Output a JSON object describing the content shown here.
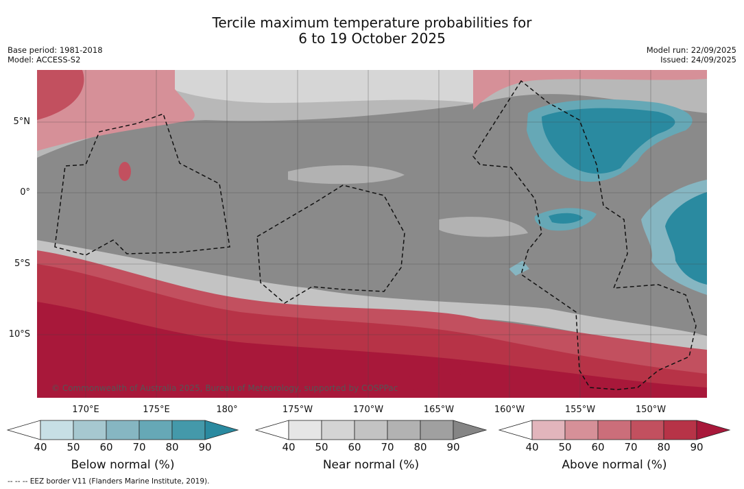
{
  "header": {
    "title_line1": "Tercile maximum temperature probabilities for",
    "title_line2": "6 to 19 October 2025",
    "base_period": "Base period: 1981-2018",
    "model": "Model: ACCESS-S2",
    "model_run": "Model run: 22/09/2025",
    "issued": "Issued: 24/09/2025"
  },
  "map": {
    "latitude_labels": [
      "5°N",
      "0°",
      "5°S",
      "10°S"
    ],
    "longitude_labels": [
      "170°E",
      "175°E",
      "180°",
      "175°W",
      "170°W",
      "165°W",
      "160°W",
      "155°W",
      "150°W"
    ],
    "copyright": "© Commonwealth of Australia 2025, Bureau of Meteorology, supported by COSPPac"
  },
  "colorbars": [
    {
      "name": "below",
      "label": "Below normal (%)",
      "ticks": [
        "40",
        "50",
        "60",
        "70",
        "80",
        "90"
      ],
      "colors": [
        "#ffffff",
        "#c7dfe5",
        "#a6c8d0",
        "#86b6c2",
        "#66a8b6",
        "#4499aa",
        "#2a8aa0"
      ]
    },
    {
      "name": "near",
      "label": "Near normal (%)",
      "ticks": [
        "40",
        "50",
        "60",
        "70",
        "80",
        "90"
      ],
      "colors": [
        "#ffffff",
        "#e6e6e6",
        "#d4d4d4",
        "#c3c3c3",
        "#b2b2b2",
        "#a0a0a0",
        "#858585"
      ]
    },
    {
      "name": "above",
      "label": "Above normal (%)",
      "ticks": [
        "40",
        "50",
        "60",
        "70",
        "80",
        "90"
      ],
      "colors": [
        "#ffffff",
        "#e2b5bc",
        "#d69098",
        "#cb6e7a",
        "#c2505f",
        "#b73347",
        "#a8183a"
      ]
    }
  ],
  "footer": "--  --  -- EEZ border V11 (Flanders Marine Institute, 2019)."
}
